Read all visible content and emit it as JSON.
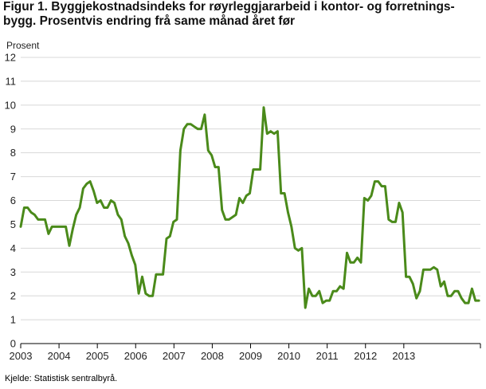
{
  "title_line1": "Figur 1. Byggjekostnadsindeks for røyrleggjararbeid i kontor- og forretnings-",
  "title_line2": "bygg. Prosentvis endring frå same månad året før",
  "source": "Kjelde: Statistisk sentralbyrå.",
  "chart_data": {
    "type": "line",
    "title": "Figur 1. Byggjekostnadsindeks for røyrleggjararbeid i kontor- og forretningsbygg. Prosentvis endring frå same månad året før",
    "ylabel": "Prosent",
    "xlabel": "",
    "ylim": [
      0,
      12
    ],
    "yticks": [
      0,
      1,
      2,
      3,
      4,
      5,
      6,
      7,
      8,
      9,
      10,
      11,
      12
    ],
    "xticks": [
      "2003",
      "2004",
      "2005",
      "2006",
      "2007",
      "2008",
      "2009",
      "2010",
      "2011",
      "2012",
      "2013"
    ],
    "xrange": [
      "2003-01",
      "2013-12"
    ],
    "grid": "horizontal",
    "line_color": "#4a8a1a",
    "series": [
      {
        "values": [
          4.9,
          5.7,
          5.7,
          5.5,
          5.4,
          5.2,
          5.2,
          5.2,
          4.6,
          4.9,
          4.9,
          4.9,
          4.9,
          4.9,
          4.1,
          4.8,
          5.4,
          5.7,
          6.5,
          6.7,
          6.8,
          6.4,
          5.9,
          6.0,
          5.7,
          5.7,
          6.0,
          5.9,
          5.4,
          5.2,
          4.5,
          4.2,
          3.7,
          3.3,
          2.1,
          2.8,
          2.1,
          2.0,
          2.0,
          2.9,
          2.9,
          2.9,
          4.4,
          4.5,
          5.1,
          5.2,
          8.1,
          9.0,
          9.2,
          9.2,
          9.1,
          9.0,
          9.0,
          9.6,
          8.1,
          7.9,
          7.4,
          7.4,
          5.6,
          5.2,
          5.2,
          5.3,
          5.4,
          6.1,
          5.9,
          6.2,
          6.3,
          7.3,
          7.3,
          7.3,
          9.9,
          8.8,
          8.9,
          8.8,
          8.9,
          6.3,
          6.3,
          5.5,
          4.9,
          4.0,
          3.9,
          4.0,
          1.5,
          2.3,
          2.0,
          2.0,
          2.2,
          1.7,
          1.8,
          1.8,
          2.2,
          2.2,
          2.4,
          2.3,
          3.8,
          3.4,
          3.4,
          3.6,
          3.4,
          6.1,
          6.0,
          6.2,
          6.8,
          6.8,
          6.6,
          6.6,
          5.2,
          5.1,
          5.1,
          5.9,
          5.5,
          2.8,
          2.8,
          2.5,
          1.9,
          2.2,
          3.1,
          3.1,
          3.1,
          3.2,
          3.1,
          2.4,
          2.6,
          2.0,
          2.0,
          2.2,
          2.2,
          1.9,
          1.7,
          1.7,
          2.3,
          1.8,
          1.8
        ]
      }
    ]
  }
}
